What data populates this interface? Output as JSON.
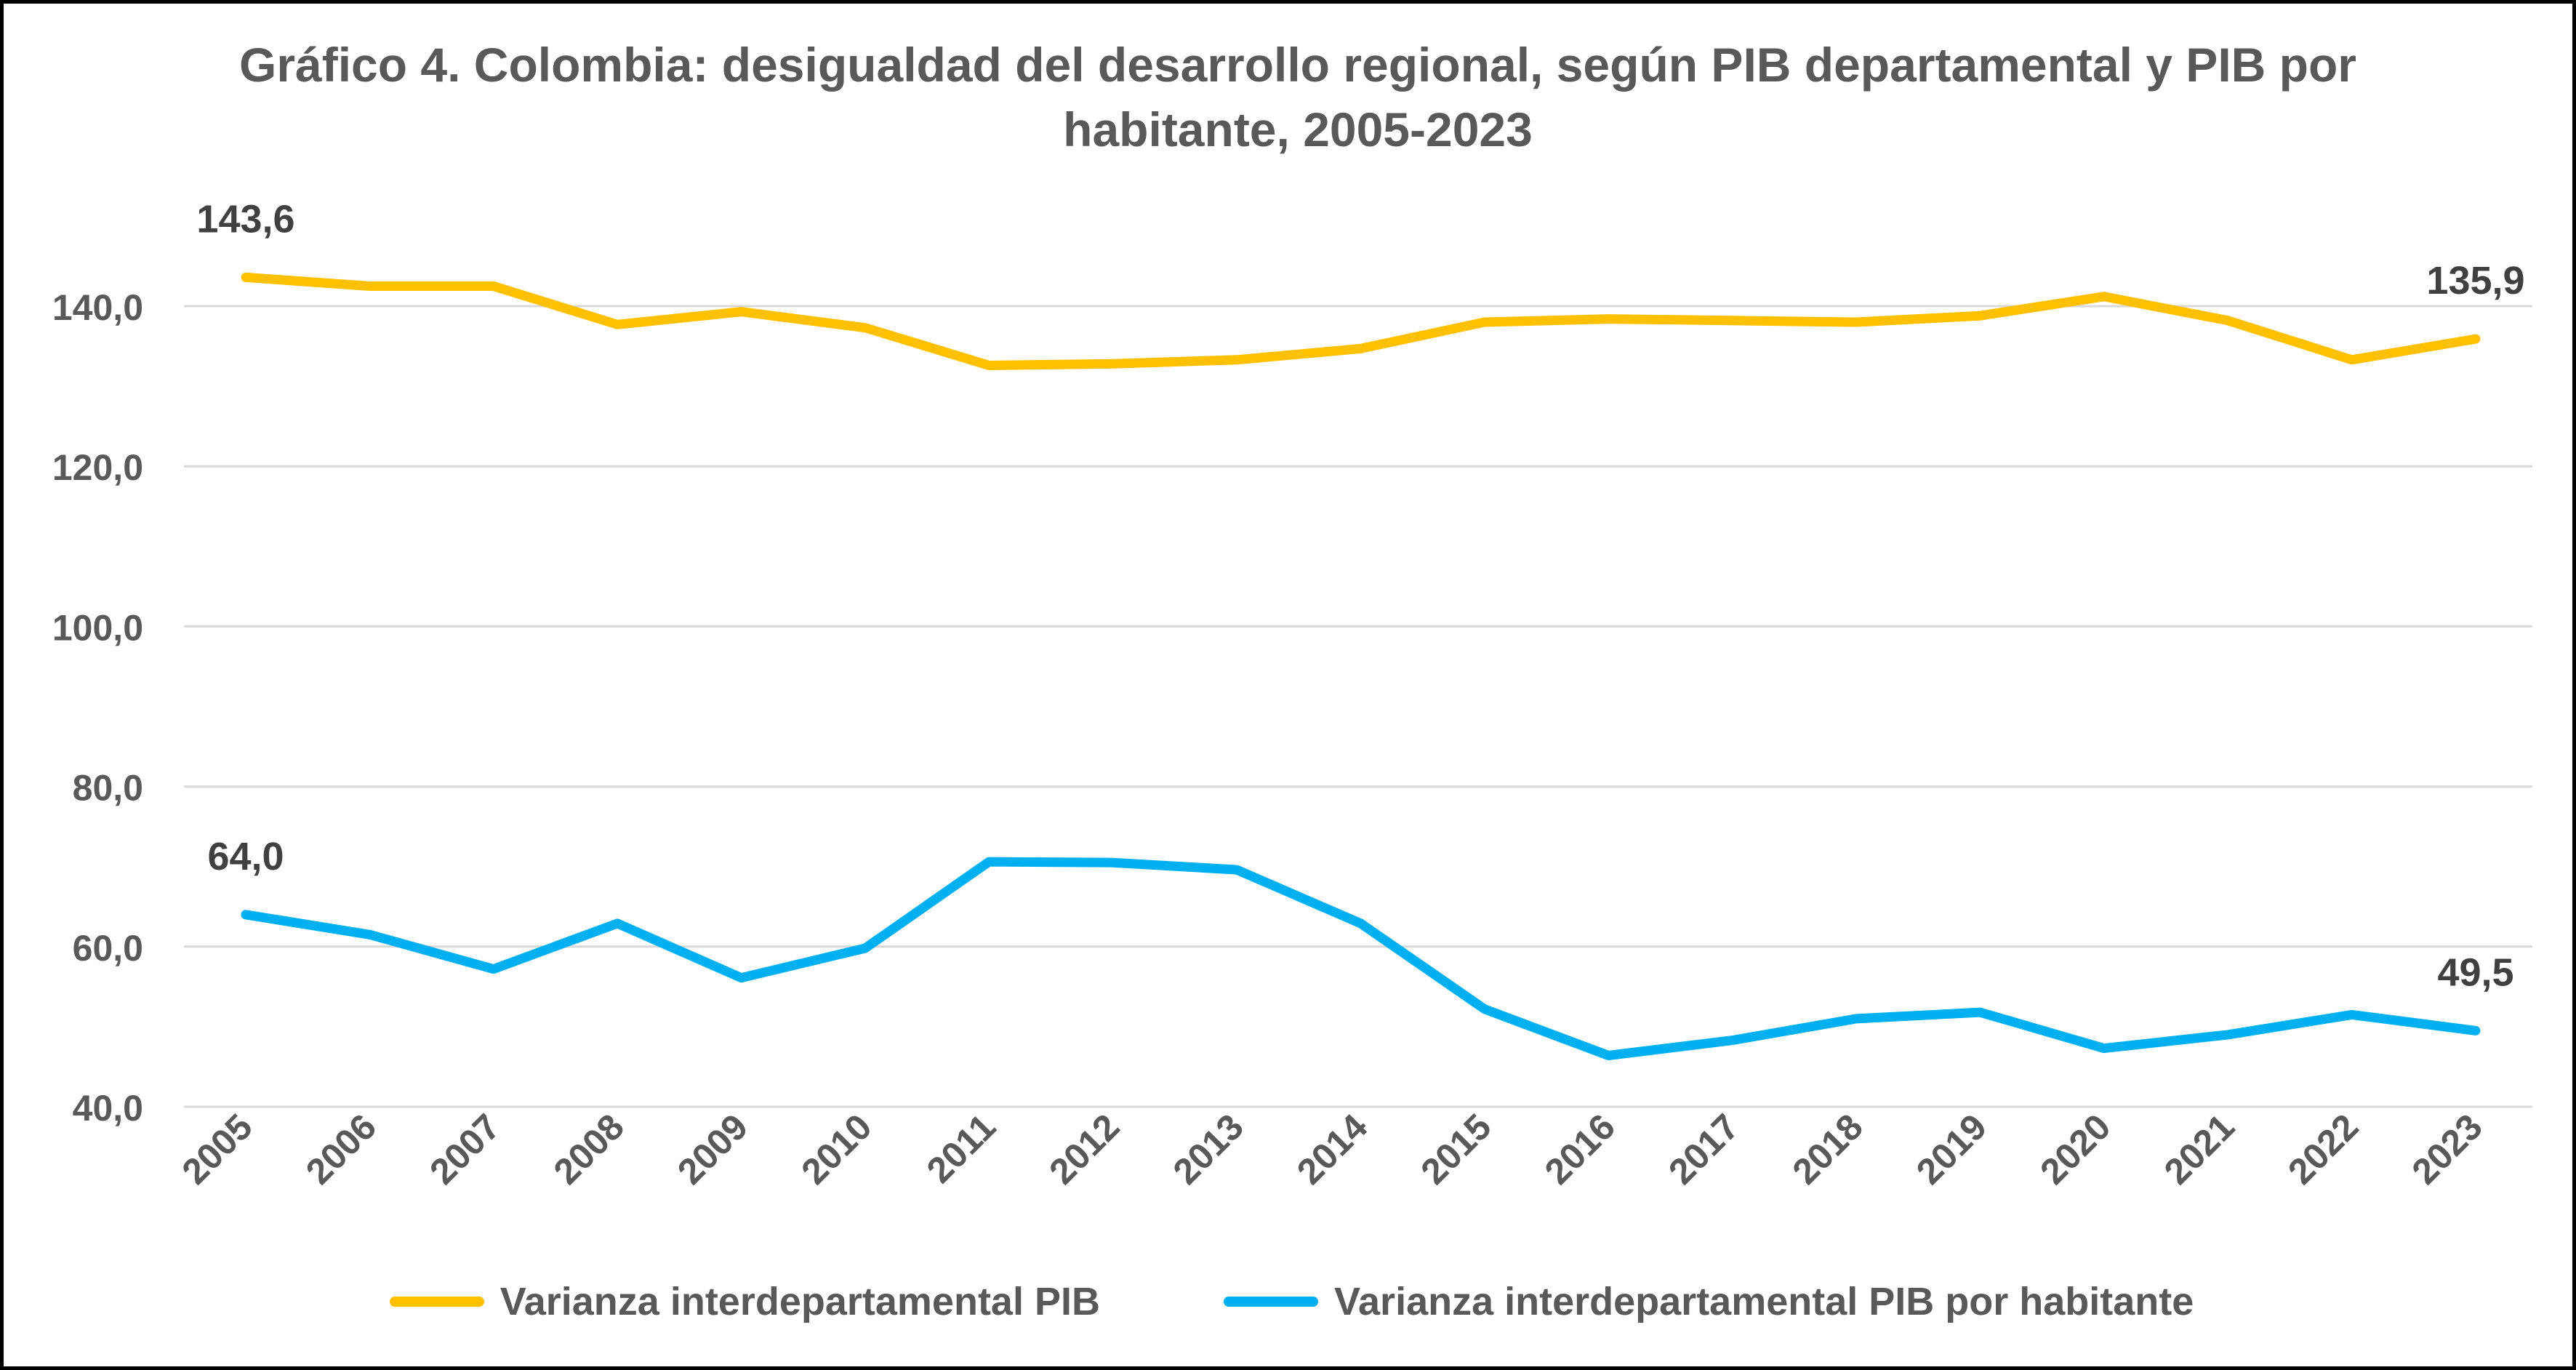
{
  "colors": {
    "series_pib": "#FFC000",
    "series_pib_hab": "#00B0F0",
    "grid": "#D9D9D9",
    "text": "#595959",
    "frame": "#000000"
  },
  "chart_data": {
    "type": "line",
    "title": "Gráfico 4. Colombia: desigualdad del desarrollo regional, según PIB departamental y PIB por habitante,  2005-2023",
    "xlabel": "",
    "ylabel": "",
    "categories": [
      "2005",
      "2006",
      "2007",
      "2008",
      "2009",
      "2010",
      "2011",
      "2012",
      "2013",
      "2014",
      "2015",
      "2016",
      "2017",
      "2018",
      "2019",
      "2020",
      "2021",
      "2022",
      "2023"
    ],
    "ylim": [
      40,
      150
    ],
    "yticks": [
      40,
      60,
      80,
      100,
      120,
      140
    ],
    "ytick_labels": [
      "40,0",
      "60,0",
      "80,0",
      "100,0",
      "120,0",
      "140,0"
    ],
    "grid": true,
    "legend_position": "bottom",
    "series": [
      {
        "name": "Varianza interdepartamental PIB",
        "color": "#FFC000",
        "values": [
          143.6,
          142.5,
          142.5,
          137.7,
          139.3,
          137.3,
          132.6,
          132.8,
          133.3,
          134.7,
          138.0,
          138.4,
          138.2,
          138.0,
          138.8,
          141.2,
          138.2,
          133.3,
          135.9
        ],
        "labels": [
          {
            "index": 0,
            "text": "143,6"
          },
          {
            "index": 18,
            "text": "135,9"
          }
        ]
      },
      {
        "name": "Varianza interdepartamental PIB  por habitante",
        "color": "#00B0F0",
        "values": [
          64.0,
          61.5,
          57.2,
          62.9,
          56.1,
          59.8,
          70.6,
          70.5,
          69.6,
          62.9,
          52.2,
          46.4,
          48.3,
          51.0,
          51.8,
          47.3,
          49.0,
          51.5,
          49.5
        ],
        "labels": [
          {
            "index": 0,
            "text": "64,0"
          },
          {
            "index": 18,
            "text": "49,5"
          }
        ]
      }
    ]
  }
}
